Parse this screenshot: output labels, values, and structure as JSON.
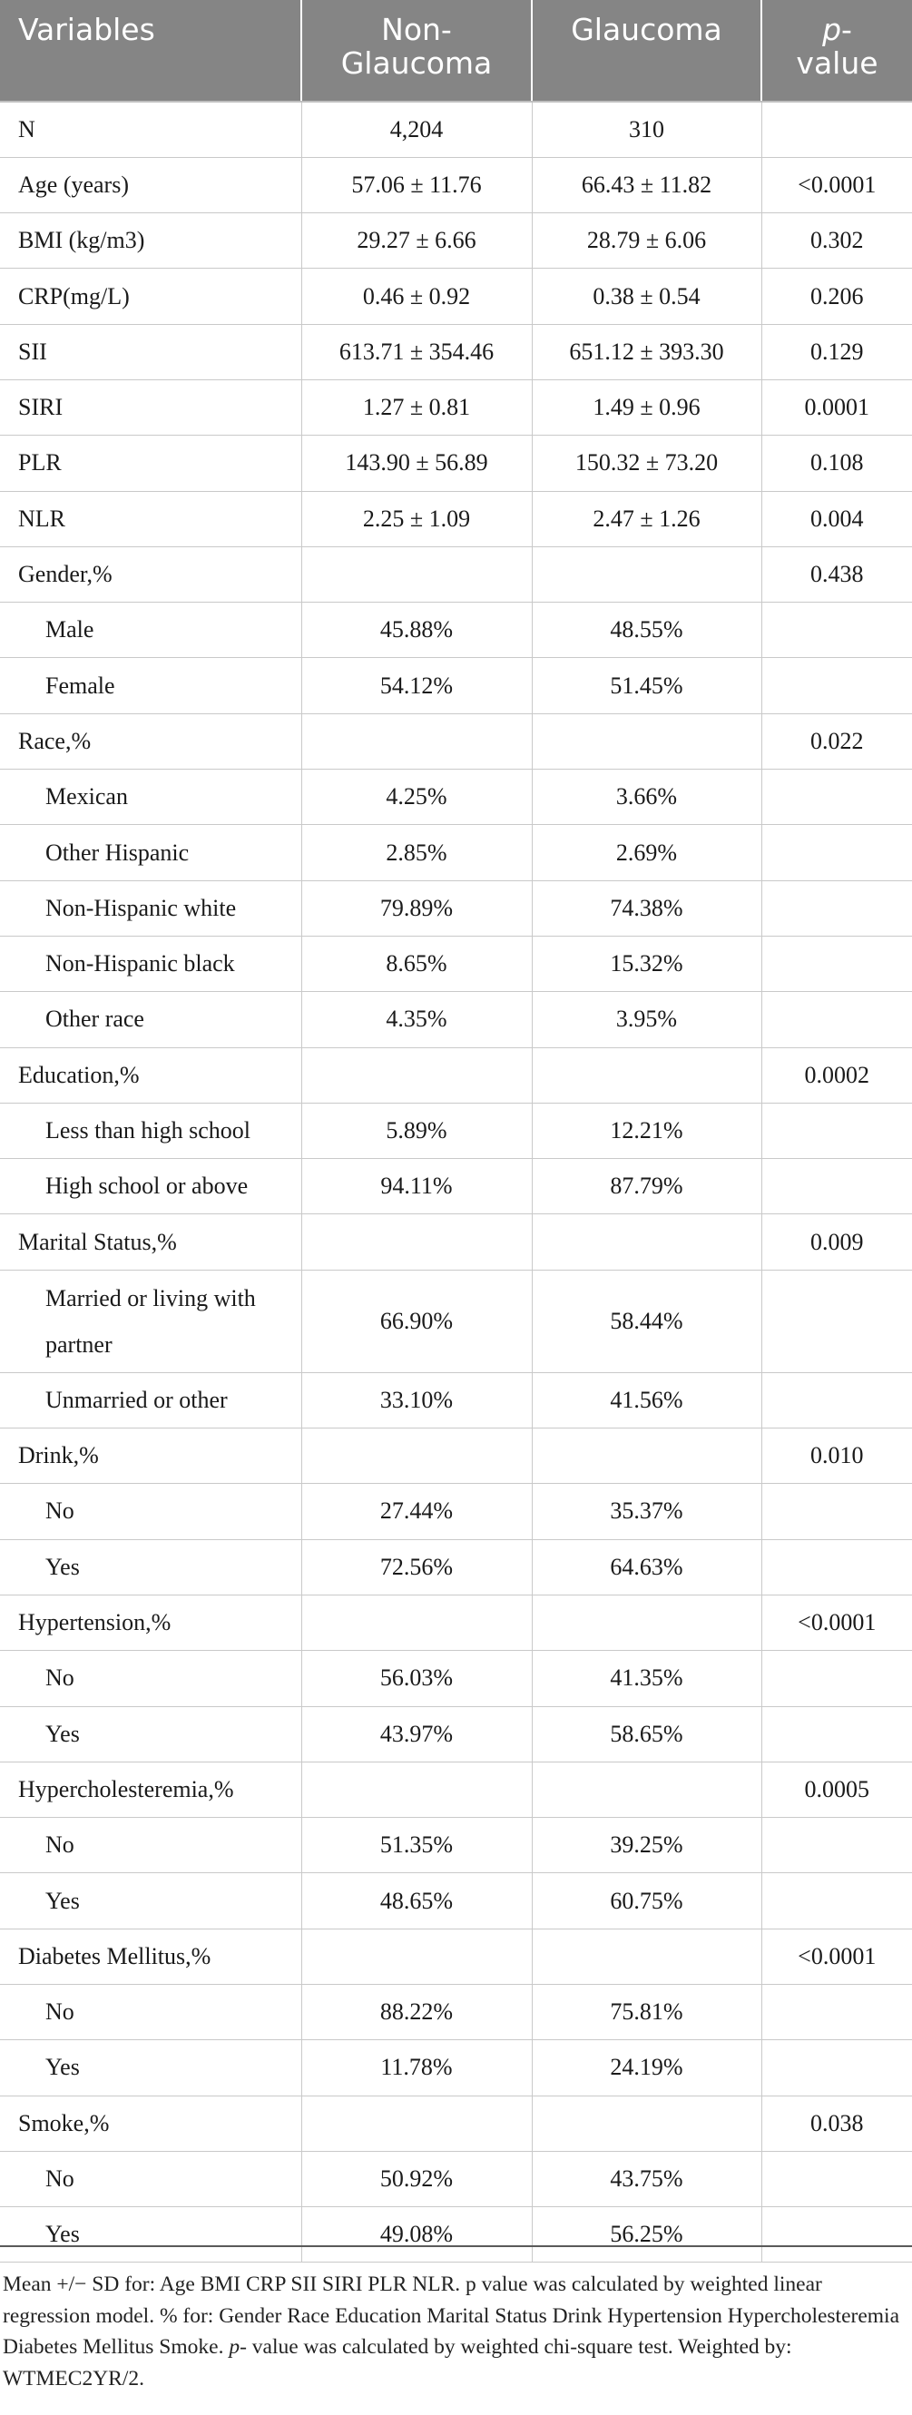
{
  "table": {
    "headers": {
      "variables": "Variables",
      "non_glaucoma_line1": "Non-",
      "non_glaucoma_line2": "Glaucoma",
      "glaucoma": "Glaucoma",
      "p_value_italic": "p",
      "p_value_dash": "-",
      "p_value_line2": "value"
    },
    "rows": [
      {
        "label": "N",
        "non_glaucoma": "4,204",
        "glaucoma": "310",
        "p": "",
        "sub": false
      },
      {
        "label": "Age (years)",
        "non_glaucoma": "57.06 ± 11.76",
        "glaucoma": "66.43 ± 11.82",
        "p": "<0.0001",
        "sub": false
      },
      {
        "label": "BMI (kg/m3)",
        "non_glaucoma": "29.27 ± 6.66",
        "glaucoma": "28.79 ± 6.06",
        "p": "0.302",
        "sub": false
      },
      {
        "label": "CRP(mg/L)",
        "non_glaucoma": "0.46 ± 0.92",
        "glaucoma": "0.38 ± 0.54",
        "p": "0.206",
        "sub": false
      },
      {
        "label": "SII",
        "non_glaucoma": "613.71 ± 354.46",
        "glaucoma": "651.12 ± 393.30",
        "p": "0.129",
        "sub": false
      },
      {
        "label": "SIRI",
        "non_glaucoma": "1.27 ± 0.81",
        "glaucoma": "1.49 ± 0.96",
        "p": "0.0001",
        "sub": false
      },
      {
        "label": "PLR",
        "non_glaucoma": "143.90 ± 56.89",
        "glaucoma": "150.32 ± 73.20",
        "p": "0.108",
        "sub": false
      },
      {
        "label": "NLR",
        "non_glaucoma": "2.25 ± 1.09",
        "glaucoma": "2.47 ± 1.26",
        "p": "0.004",
        "sub": false
      },
      {
        "label": "Gender,%",
        "non_glaucoma": "",
        "glaucoma": "",
        "p": "0.438",
        "sub": false
      },
      {
        "label": "Male",
        "non_glaucoma": "45.88%",
        "glaucoma": "48.55%",
        "p": "",
        "sub": true
      },
      {
        "label": "Female",
        "non_glaucoma": "54.12%",
        "glaucoma": "51.45%",
        "p": "",
        "sub": true
      },
      {
        "label": "Race,%",
        "non_glaucoma": "",
        "glaucoma": "",
        "p": "0.022",
        "sub": false
      },
      {
        "label": "Mexican",
        "non_glaucoma": "4.25%",
        "glaucoma": "3.66%",
        "p": "",
        "sub": true
      },
      {
        "label": "Other Hispanic",
        "non_glaucoma": "2.85%",
        "glaucoma": "2.69%",
        "p": "",
        "sub": true
      },
      {
        "label": "Non-Hispanic white",
        "non_glaucoma": "79.89%",
        "glaucoma": "74.38%",
        "p": "",
        "sub": true
      },
      {
        "label": "Non-Hispanic black",
        "non_glaucoma": "8.65%",
        "glaucoma": "15.32%",
        "p": "",
        "sub": true
      },
      {
        "label": "Other race",
        "non_glaucoma": "4.35%",
        "glaucoma": "3.95%",
        "p": "",
        "sub": true
      },
      {
        "label": "Education,%",
        "non_glaucoma": "",
        "glaucoma": "",
        "p": "0.0002",
        "sub": false
      },
      {
        "label": "Less than high school",
        "non_glaucoma": "5.89%",
        "glaucoma": "12.21%",
        "p": "",
        "sub": true
      },
      {
        "label": "High school or above",
        "non_glaucoma": "94.11%",
        "glaucoma": "87.79%",
        "p": "",
        "sub": true
      },
      {
        "label": "Marital Status,%",
        "non_glaucoma": "",
        "glaucoma": "",
        "p": "0.009",
        "sub": false
      },
      {
        "label": "Married or living with partner",
        "non_glaucoma": "66.90%",
        "glaucoma": "58.44%",
        "p": "",
        "sub": true,
        "tall": true
      },
      {
        "label": "Unmarried or other",
        "non_glaucoma": "33.10%",
        "glaucoma": "41.56%",
        "p": "",
        "sub": true
      },
      {
        "label": "Drink,%",
        "non_glaucoma": "",
        "glaucoma": "",
        "p": "0.010",
        "sub": false
      },
      {
        "label": "No",
        "non_glaucoma": "27.44%",
        "glaucoma": "35.37%",
        "p": "",
        "sub": true
      },
      {
        "label": "Yes",
        "non_glaucoma": "72.56%",
        "glaucoma": "64.63%",
        "p": "",
        "sub": true
      },
      {
        "label": "Hypertension,%",
        "non_glaucoma": "",
        "glaucoma": "",
        "p": "<0.0001",
        "sub": false
      },
      {
        "label": "No",
        "non_glaucoma": "56.03%",
        "glaucoma": "41.35%",
        "p": "",
        "sub": true
      },
      {
        "label": "Yes",
        "non_glaucoma": "43.97%",
        "glaucoma": "58.65%",
        "p": "",
        "sub": true
      },
      {
        "label": "Hypercholesteremia,%",
        "non_glaucoma": "",
        "glaucoma": "",
        "p": "0.0005",
        "sub": false
      },
      {
        "label": "No",
        "non_glaucoma": "51.35%",
        "glaucoma": "39.25%",
        "p": "",
        "sub": true
      },
      {
        "label": "Yes",
        "non_glaucoma": "48.65%",
        "glaucoma": "60.75%",
        "p": "",
        "sub": true
      },
      {
        "label": "Diabetes Mellitus,%",
        "non_glaucoma": "",
        "glaucoma": "",
        "p": "<0.0001",
        "sub": false
      },
      {
        "label": "No",
        "non_glaucoma": "88.22%",
        "glaucoma": "75.81%",
        "p": "",
        "sub": true
      },
      {
        "label": "Yes",
        "non_glaucoma": "11.78%",
        "glaucoma": "24.19%",
        "p": "",
        "sub": true
      },
      {
        "label": "Smoke,%",
        "non_glaucoma": "",
        "glaucoma": "",
        "p": "0.038",
        "sub": false
      },
      {
        "label": "No",
        "non_glaucoma": "50.92%",
        "glaucoma": "43.75%",
        "p": "",
        "sub": true
      },
      {
        "label": "Yes",
        "non_glaucoma": "49.08%",
        "glaucoma": "56.25%",
        "p": "",
        "sub": true
      }
    ]
  },
  "footnote": {
    "part1": "Mean +/− SD for: Age BMI CRP SII SIRI PLR NLR. p value was calculated by weighted linear regression model. % for: Gender Race Education Marital Status Drink Hypertension Hypercholesteremia Diabetes Mellitus Smoke. ",
    "p_italic": "p",
    "part2": "- value was calculated by weighted chi-square test. Weighted by: WTMEC2YR/2."
  },
  "colors": {
    "header_bg": "#858585",
    "header_text": "#ffffff",
    "grid": "#c9c9c9"
  }
}
